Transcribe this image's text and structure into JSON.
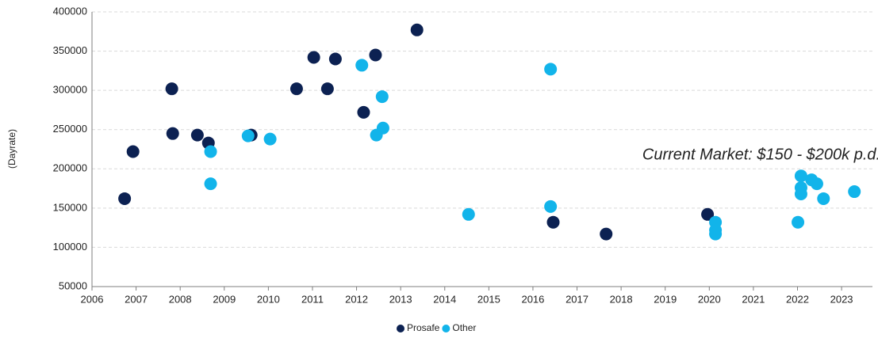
{
  "chart_data": {
    "type": "scatter",
    "ylabel": "(Dayrate)",
    "annotation": "Current Market: $150 - $200k p.d.",
    "xlim": [
      2006,
      2023.7
    ],
    "ylim": [
      50000,
      400000
    ],
    "xticks": [
      2006,
      2007,
      2008,
      2009,
      2010,
      2011,
      2012,
      2013,
      2014,
      2015,
      2016,
      2017,
      2018,
      2019,
      2020,
      2021,
      2022,
      2023
    ],
    "yticks": [
      50000,
      100000,
      150000,
      200000,
      250000,
      300000,
      350000,
      400000
    ],
    "grid": true,
    "legend": "bottom",
    "series": [
      {
        "name": "Prosafe",
        "color": "#0c2152",
        "x": [
          2006.74,
          2006.93,
          2007.81,
          2007.83,
          2008.39,
          2008.64,
          2009.61,
          2010.64,
          2011.03,
          2011.34,
          2011.52,
          2012.16,
          2012.43,
          2013.37,
          2016.46,
          2017.66,
          2019.96
        ],
        "values": [
          162000,
          222000,
          302000,
          245000,
          243000,
          233000,
          243000,
          302000,
          342000,
          302000,
          340000,
          272000,
          345000,
          377000,
          132000,
          117000,
          142000
        ]
      },
      {
        "name": "Other",
        "color": "#12b4ea",
        "x": [
          2008.69,
          2008.69,
          2009.54,
          2010.04,
          2012.12,
          2012.58,
          2012.6,
          2012.45,
          2014.54,
          2016.4,
          2016.4,
          2020.14,
          2020.14,
          2020.14,
          2022.01,
          2022.08,
          2022.08,
          2022.08,
          2022.32,
          2022.44,
          2022.59,
          2023.29
        ],
        "values": [
          222000,
          181000,
          242000,
          238000,
          332000,
          292000,
          252000,
          243000,
          142000,
          327000,
          152000,
          132000,
          122000,
          117000,
          132000,
          191000,
          176000,
          168000,
          186000,
          181000,
          162000,
          171000
        ]
      }
    ]
  }
}
